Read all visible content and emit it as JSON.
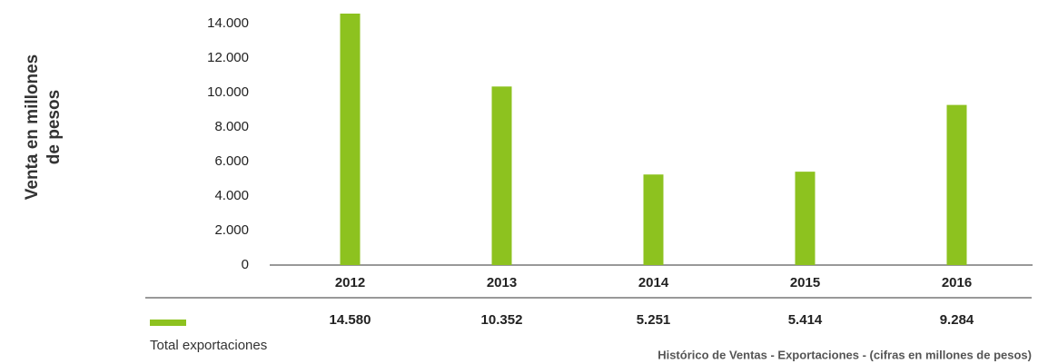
{
  "chart_data": {
    "type": "bar",
    "y_label": [
      "Venta en millones",
      "de pesos"
    ],
    "categories": [
      "2012",
      "2013",
      "2014",
      "2015",
      "2016"
    ],
    "series": [
      {
        "name": "Total exportaciones",
        "color": "#8dc21f",
        "values": [
          14580,
          10352,
          5251,
          5414,
          9284
        ],
        "value_labels": [
          "14.580",
          "10.352",
          "5.251",
          "5.414",
          "9.284"
        ]
      }
    ],
    "ylim": [
      0,
      15000
    ],
    "yticks": [
      0,
      {
        "value": 2000,
        "label": "2.000"
      },
      {
        "value": 4000,
        "label": "4.000"
      },
      {
        "value": 6000,
        "label": "6.000"
      },
      {
        "value": 8000,
        "label": "8.000"
      },
      {
        "value": 10000,
        "label": "10.000"
      },
      {
        "value": 12000,
        "label": "12.000"
      },
      {
        "value": 14000,
        "label": "14.000"
      }
    ],
    "note": "Histórico de Ventas  - Exportaciones - (cifras en millones de pesos)"
  }
}
